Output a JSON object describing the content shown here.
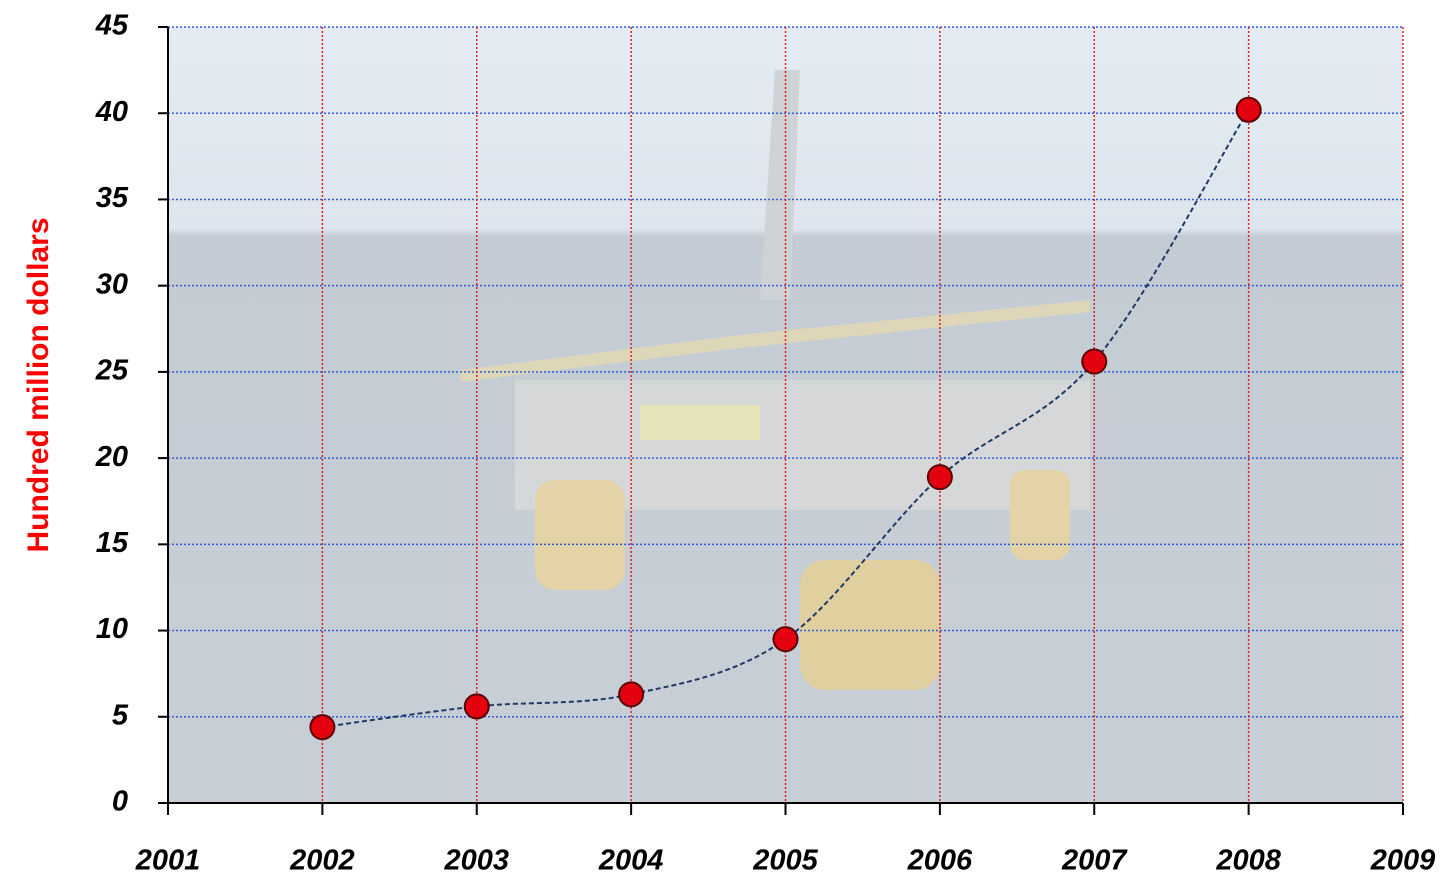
{
  "chart_data": {
    "type": "line",
    "y_label": "Hundred million dollars",
    "x": [
      2002,
      2003,
      2004,
      2005,
      2006,
      2007,
      2008
    ],
    "values": [
      4.4,
      5.6,
      6.3,
      9.5,
      18.9,
      25.6,
      40.2
    ],
    "color": "#e3000f",
    "line_color": "#203864",
    "xlim": [
      2001,
      2009
    ],
    "xticks": [
      2001,
      2002,
      2003,
      2004,
      2005,
      2006,
      2007,
      2008,
      2009
    ],
    "ylim": [
      0,
      45
    ],
    "yticks": [
      0,
      5,
      10,
      15,
      20,
      25,
      30,
      35,
      40,
      45
    ],
    "grid": true
  }
}
